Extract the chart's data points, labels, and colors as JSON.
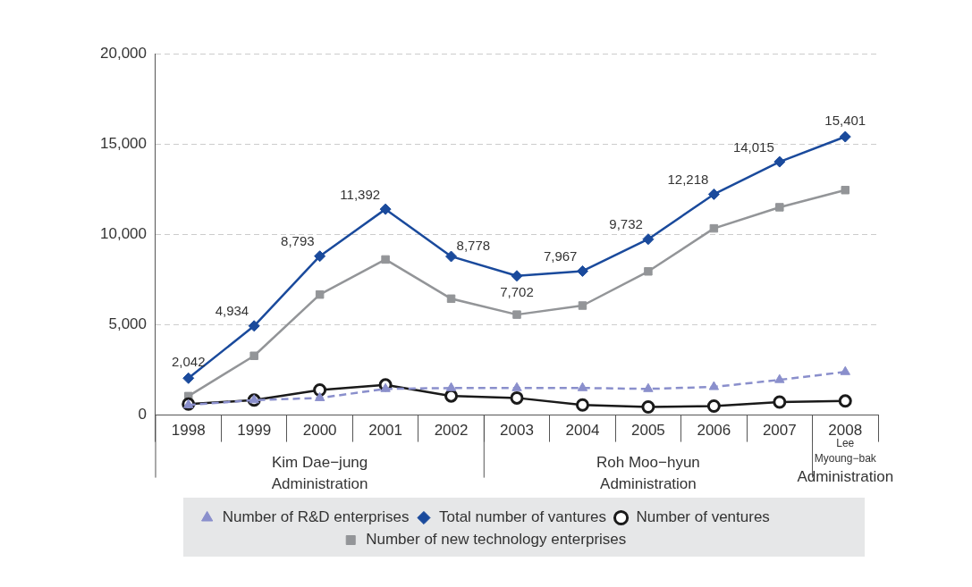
{
  "chart_data": {
    "type": "line",
    "categories": [
      "1998",
      "1999",
      "2000",
      "2001",
      "2002",
      "2003",
      "2004",
      "2005",
      "2006",
      "2007",
      "2008"
    ],
    "ylim": [
      0,
      20000
    ],
    "yticks": [
      0,
      {
        "value": 5000,
        "label": "5,000"
      },
      {
        "value": 10000,
        "label": "10,000"
      },
      {
        "value": 15000,
        "label": "15,000"
      },
      {
        "value": 20000,
        "label": "20,000"
      }
    ],
    "grid": "y",
    "legend": "bottom",
    "annotations": [
      "Kim Dae−jung\nAdministration",
      "Roh Moo−hyun\nAdministration",
      "Lee\nMyoung−bak\nAdministration"
    ],
    "series": [
      {
        "name": "Total number of vantures",
        "color": "#1a4a9c",
        "marker": "diamond",
        "values": [
          2042,
          4934,
          8793,
          11392,
          8778,
          7702,
          7967,
          9732,
          12218,
          14015,
          15401
        ],
        "value_labels": [
          "2,042",
          "4,934",
          "8,793",
          "11,392",
          "8,778",
          "7,702",
          "7,967",
          "9,732",
          "12,218",
          "14,015",
          "15,401"
        ]
      },
      {
        "name": "Number of ventures",
        "color": "#1a1a1a",
        "marker": "circle",
        "values": [
          610,
          830,
          1390,
          1670,
          1060,
          950,
          560,
          450,
          500,
          720,
          780
        ]
      },
      {
        "name": "Number of R&D enterprises",
        "color": "#8a8fcc",
        "marker": "triangle",
        "line_style": "dashed",
        "values": [
          560,
          830,
          950,
          1450,
          1500,
          1500,
          1500,
          1450,
          1560,
          1950,
          2390
        ]
      },
      {
        "name": "Number of new technology enterprises",
        "color": "#939598",
        "marker": "square",
        "values": [
          1050,
          3280,
          6670,
          8610,
          6440,
          5560,
          6060,
          7950,
          10330,
          11500,
          12450
        ]
      }
    ]
  }
}
